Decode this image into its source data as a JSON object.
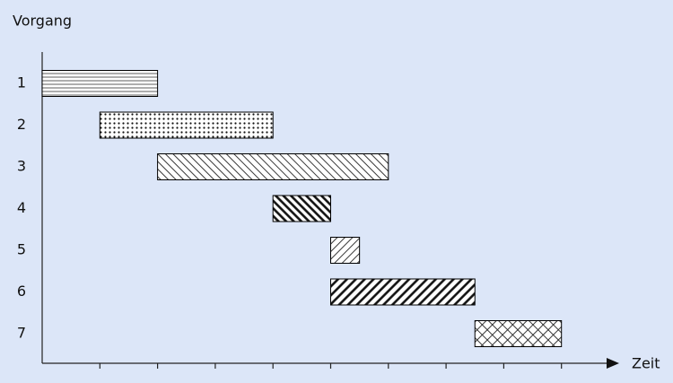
{
  "chart_data": {
    "type": "gantt",
    "y_label": "Vorgang",
    "x_label": "Zeit",
    "categories": [
      "1",
      "2",
      "3",
      "4",
      "5",
      "6",
      "7"
    ],
    "start": [
      0,
      1,
      2,
      4,
      5,
      5,
      7.5
    ],
    "end": [
      2,
      4,
      6,
      5,
      5.5,
      7.5,
      9
    ],
    "xlim": [
      0,
      10
    ],
    "xticks": [
      1,
      2,
      3,
      4,
      5,
      6,
      7,
      8,
      9
    ],
    "color": "#000000",
    "background": "#dce6f8"
  }
}
